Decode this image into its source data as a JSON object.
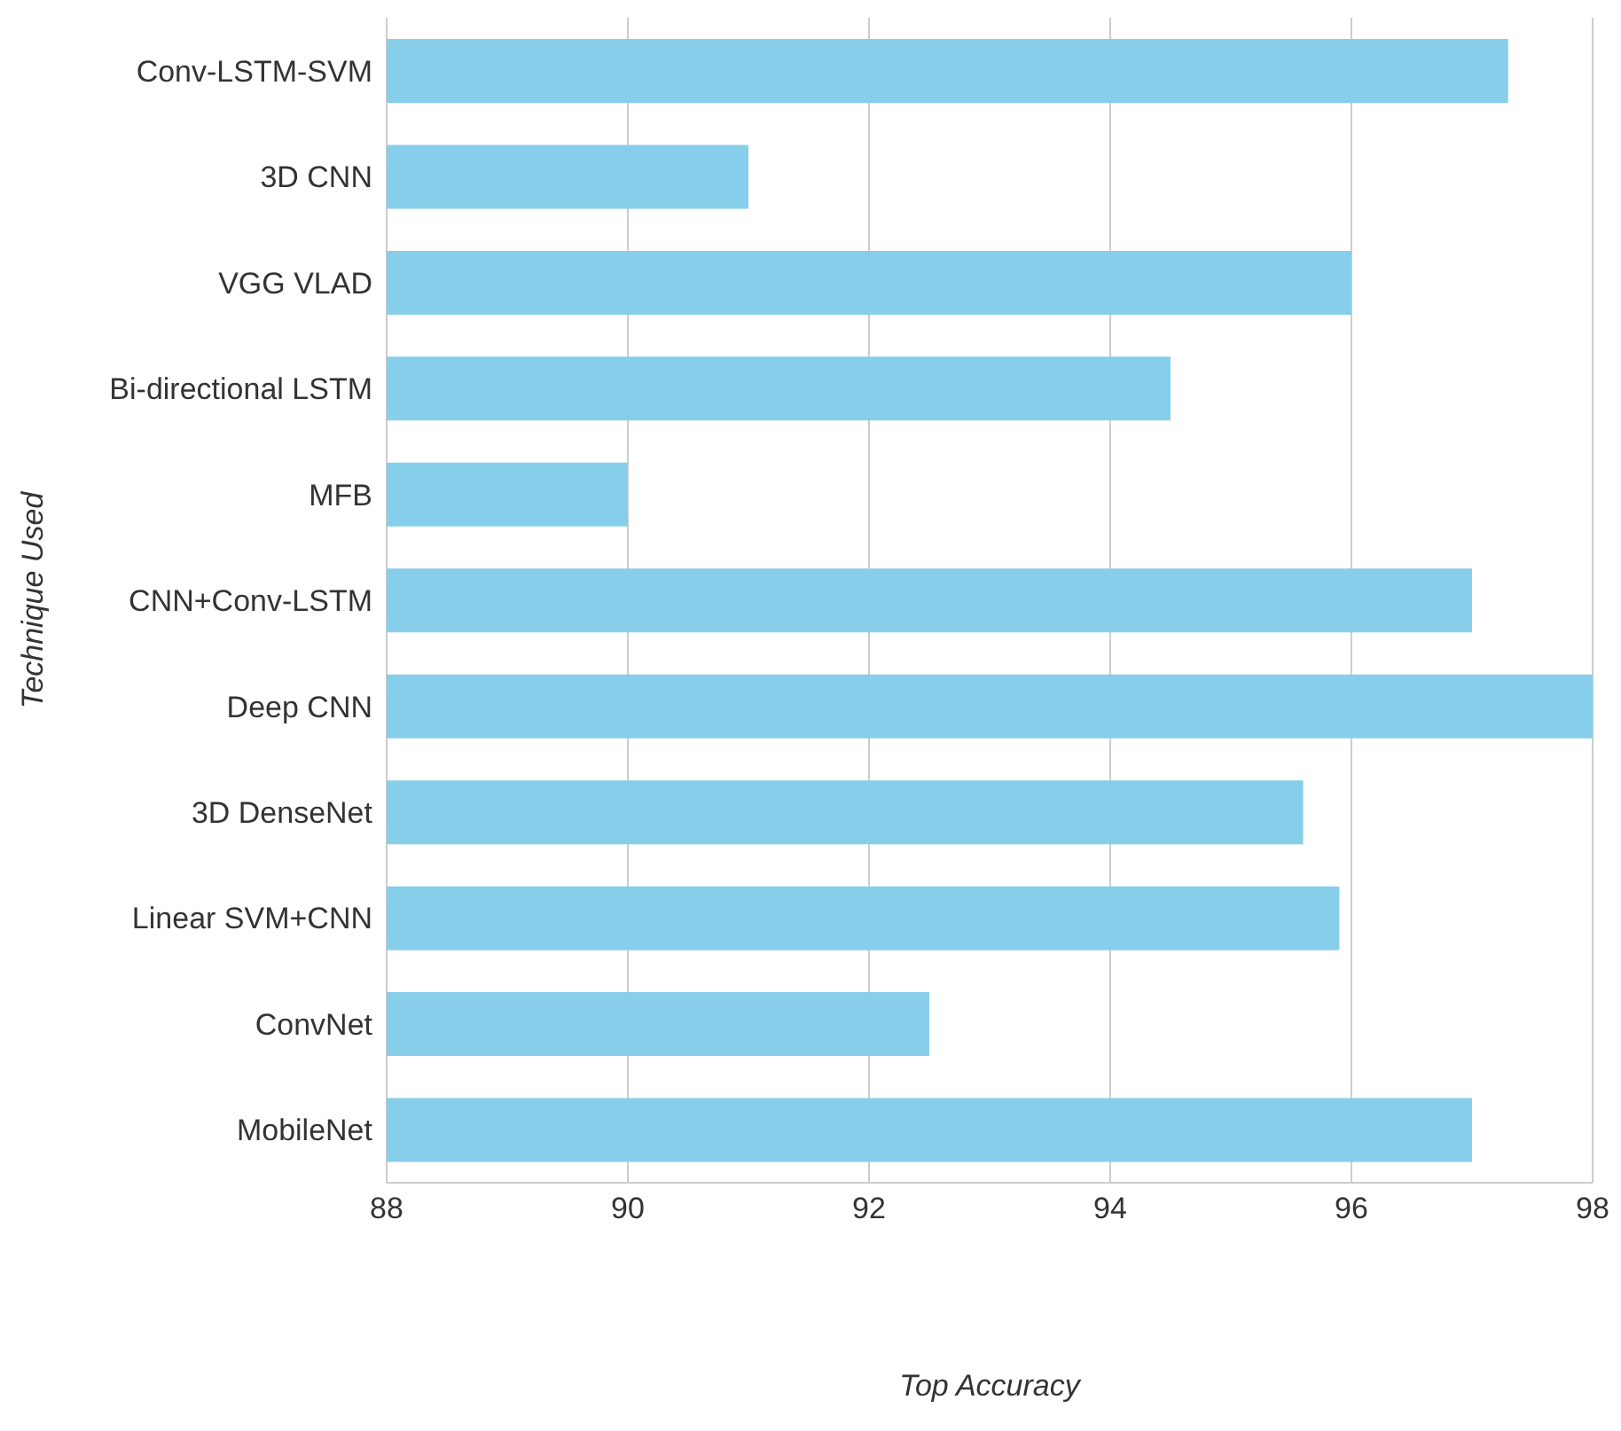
{
  "chart_data": {
    "type": "bar",
    "orientation": "horizontal",
    "xlabel": "Top Accuracy",
    "ylabel": "Technique Used",
    "categories": [
      "Conv-LSTM-SVM",
      "3D CNN",
      "VGG VLAD",
      "Bi-directional LSTM",
      "MFB",
      "CNN+Conv-LSTM",
      "Deep CNN",
      "3D DenseNet",
      "Linear SVM+CNN",
      "ConvNet",
      "MobileNet"
    ],
    "values": [
      97.3,
      91,
      96,
      94.5,
      90,
      97,
      98,
      95.6,
      95.9,
      92.5,
      97
    ],
    "color": "#87ceeb",
    "xlim": [
      88,
      98
    ],
    "xticks": [
      88,
      90,
      92,
      94,
      96,
      98
    ],
    "grid": "x"
  }
}
